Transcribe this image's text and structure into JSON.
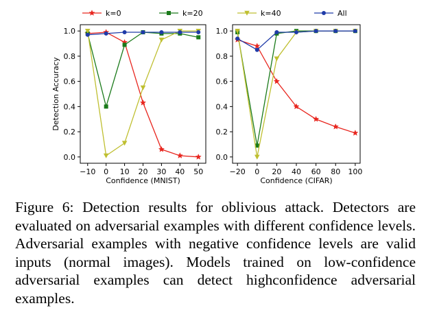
{
  "caption": "Figure 6: Detection results for oblivious attack. Detectors are evaluated on adversarial examples with different confi­dence levels. Adversarial examples with negative confidence levels are valid inputs (normal images). Models trained on low-confidence adversarial examples can detect high­confidence adversarial examples.",
  "legend": [
    {
      "label": "k=0",
      "color": "#e8261f",
      "marker": "star"
    },
    {
      "label": "k=20",
      "color": "#1a7a1a",
      "marker": "square"
    },
    {
      "label": "k=40",
      "color": "#bfbf30",
      "marker": "triangle-down"
    },
    {
      "label": "All",
      "color": "#1f3ba8",
      "marker": "circle"
    }
  ],
  "chart_data": [
    {
      "type": "line",
      "xlabel": "Confidence (MNIST)",
      "ylabel": "Detection Accuracy",
      "xlim": [
        -14,
        54
      ],
      "ylim": [
        -0.05,
        1.05
      ],
      "xticks": [
        -10,
        0,
        10,
        20,
        30,
        40,
        50
      ],
      "xtick_labels": [
        "−10",
        "0",
        "10",
        "20",
        "30",
        "40",
        "50"
      ],
      "yticks": [
        0.0,
        0.2,
        0.4,
        0.6,
        0.8,
        1.0
      ],
      "ytick_labels": [
        "0.0",
        "0.2",
        "0.4",
        "0.6",
        "0.8",
        "1.0"
      ],
      "x": [
        -10,
        0,
        10,
        20,
        30,
        40,
        50
      ],
      "series": [
        {
          "name": "k=0",
          "values": [
            0.98,
            0.99,
            0.91,
            0.43,
            0.06,
            0.01,
            0.0
          ]
        },
        {
          "name": "k=20",
          "values": [
            0.98,
            0.4,
            0.89,
            0.99,
            0.98,
            0.98,
            0.95
          ]
        },
        {
          "name": "k=40",
          "values": [
            1.0,
            0.01,
            0.11,
            0.55,
            0.93,
            1.0,
            1.0
          ]
        },
        {
          "name": "All",
          "values": [
            0.97,
            0.98,
            0.99,
            0.99,
            0.99,
            0.99,
            0.99
          ]
        }
      ]
    },
    {
      "type": "line",
      "xlabel": "Confidence (CIFAR)",
      "ylabel": "",
      "xlim": [
        -25,
        105
      ],
      "ylim": [
        -0.05,
        1.05
      ],
      "xticks": [
        -20,
        0,
        20,
        40,
        60,
        80,
        100
      ],
      "xtick_labels": [
        "−20",
        "0",
        "20",
        "40",
        "60",
        "80",
        "100"
      ],
      "yticks": [
        0.0,
        0.2,
        0.4,
        0.6,
        0.8,
        1.0
      ],
      "ytick_labels": [
        "0.0",
        "0.2",
        "0.4",
        "0.6",
        "0.8",
        "1.0"
      ],
      "x": [
        -20,
        0,
        20,
        40,
        60,
        80,
        100
      ],
      "series": [
        {
          "name": "k=0",
          "values": [
            0.93,
            0.88,
            0.6,
            0.4,
            0.3,
            0.24,
            0.19
          ]
        },
        {
          "name": "k=20",
          "values": [
            0.99,
            0.09,
            0.98,
            1.0,
            1.0,
            1.0,
            1.0
          ]
        },
        {
          "name": "k=40",
          "values": [
            1.0,
            0.0,
            0.78,
            0.99,
            1.0,
            1.0,
            1.0
          ]
        },
        {
          "name": "All",
          "values": [
            0.94,
            0.85,
            0.99,
            0.99,
            1.0,
            1.0,
            1.0
          ]
        }
      ]
    }
  ]
}
